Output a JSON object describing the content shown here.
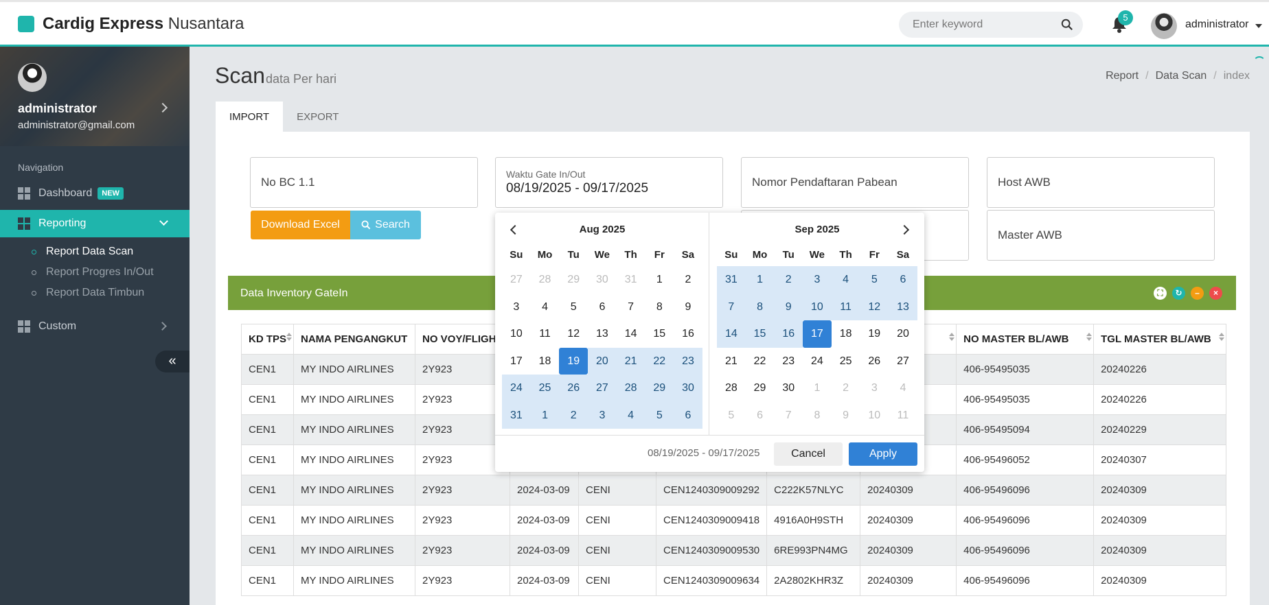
{
  "header": {
    "brand_bold": "Cardig Express",
    "brand_light": "Nusantara",
    "search_placeholder": "Enter keyword",
    "notification_count": "5",
    "user": "administrator"
  },
  "sidebar": {
    "profile_name": "administrator",
    "profile_email": "administrator@gmail.com",
    "nav_heading": "Navigation",
    "items": [
      {
        "label": "Dashboard",
        "badge": "NEW"
      },
      {
        "label": "Reporting"
      },
      {
        "label": "Custom"
      }
    ],
    "subitems": [
      "Report Data Scan",
      "Report Progres In/Out",
      "Report Data Timbun"
    ],
    "collapse_label": "«"
  },
  "page": {
    "title": "Scan",
    "subtitle": "data Per hari",
    "breadcrumb": [
      "Report",
      "Data Scan",
      "index"
    ],
    "tabs": [
      "IMPORT",
      "EXPORT"
    ]
  },
  "filters": {
    "no_bc": "No BC 1.1",
    "gate_label": "Waktu Gate In/Out",
    "gate_value": "08/19/2025 - 09/17/2025",
    "nomor_pendaftaran": "Nomor Pendaftaran Pabean",
    "host_awb": "Host AWB",
    "master_awb": "Master AWB",
    "download_excel": "Download Excel",
    "search": "Search"
  },
  "panel": {
    "title": "Data Inventory GateIn"
  },
  "table": {
    "headers": [
      "KD TPS",
      "NAMA PENGANGKUT",
      "NO VOY/FLIGHT",
      "",
      "",
      "",
      "",
      "",
      "NO MASTER BL/AWB",
      "TGL MASTER BL/AWB"
    ],
    "rows": [
      [
        "CEN1",
        "MY INDO AIRLINES",
        "2Y923",
        "",
        "",
        "",
        "",
        "",
        "406-95495035",
        "20240226"
      ],
      [
        "CEN1",
        "MY INDO AIRLINES",
        "2Y923",
        "",
        "",
        "",
        "",
        "",
        "406-95495035",
        "20240226"
      ],
      [
        "CEN1",
        "MY INDO AIRLINES",
        "2Y923",
        "",
        "",
        "",
        "",
        "",
        "406-95495094",
        "20240229"
      ],
      [
        "CEN1",
        "MY INDO AIRLINES",
        "2Y923",
        "",
        "",
        "",
        "",
        "",
        "406-95496052",
        "20240307"
      ],
      [
        "CEN1",
        "MY INDO AIRLINES",
        "2Y923",
        "2024-03-09",
        "CENI",
        "CEN1240309009292",
        "C222K57NLYC",
        "20240309",
        "406-95496096",
        "20240309"
      ],
      [
        "CEN1",
        "MY INDO AIRLINES",
        "2Y923",
        "2024-03-09",
        "CENI",
        "CEN1240309009418",
        "4916A0H9STH",
        "20240309",
        "406-95496096",
        "20240309"
      ],
      [
        "CEN1",
        "MY INDO AIRLINES",
        "2Y923",
        "2024-03-09",
        "CENI",
        "CEN1240309009530",
        "6RE993PN4MG",
        "20240309",
        "406-95496096",
        "20240309"
      ],
      [
        "CEN1",
        "MY INDO AIRLINES",
        "2Y923",
        "2024-03-09",
        "CENI",
        "CEN1240309009634",
        "2A2802KHR3Z",
        "20240309",
        "406-95496096",
        "20240309"
      ]
    ]
  },
  "datepicker": {
    "dow": [
      "Su",
      "Mo",
      "Tu",
      "We",
      "Th",
      "Fr",
      "Sa"
    ],
    "left": {
      "month": "Aug 2025",
      "days": [
        [
          "27",
          "off"
        ],
        [
          "28",
          "off"
        ],
        [
          "29",
          "off"
        ],
        [
          "30",
          "off"
        ],
        [
          "31",
          "off"
        ],
        [
          "1",
          ""
        ],
        [
          "2",
          ""
        ],
        [
          "3",
          ""
        ],
        [
          "4",
          ""
        ],
        [
          "5",
          ""
        ],
        [
          "6",
          ""
        ],
        [
          "7",
          ""
        ],
        [
          "8",
          ""
        ],
        [
          "9",
          ""
        ],
        [
          "10",
          ""
        ],
        [
          "11",
          ""
        ],
        [
          "12",
          ""
        ],
        [
          "13",
          ""
        ],
        [
          "14",
          ""
        ],
        [
          "15",
          ""
        ],
        [
          "16",
          ""
        ],
        [
          "17",
          ""
        ],
        [
          "18",
          ""
        ],
        [
          "19",
          "sel"
        ],
        [
          "20",
          "in"
        ],
        [
          "21",
          "in"
        ],
        [
          "22",
          "in"
        ],
        [
          "23",
          "in"
        ],
        [
          "24",
          "in"
        ],
        [
          "25",
          "in"
        ],
        [
          "26",
          "in"
        ],
        [
          "27",
          "in"
        ],
        [
          "28",
          "in"
        ],
        [
          "29",
          "in"
        ],
        [
          "30",
          "in"
        ],
        [
          "31",
          "in"
        ],
        [
          "1",
          "in"
        ],
        [
          "2",
          "in"
        ],
        [
          "3",
          "in"
        ],
        [
          "4",
          "in"
        ],
        [
          "5",
          "in"
        ],
        [
          "6",
          "in"
        ]
      ]
    },
    "right": {
      "month": "Sep 2025",
      "days": [
        [
          "31",
          "in"
        ],
        [
          "1",
          "in"
        ],
        [
          "2",
          "in"
        ],
        [
          "3",
          "in"
        ],
        [
          "4",
          "in"
        ],
        [
          "5",
          "in"
        ],
        [
          "6",
          "in"
        ],
        [
          "7",
          "in"
        ],
        [
          "8",
          "in"
        ],
        [
          "9",
          "in"
        ],
        [
          "10",
          "in"
        ],
        [
          "11",
          "in"
        ],
        [
          "12",
          "in"
        ],
        [
          "13",
          "in"
        ],
        [
          "14",
          "in"
        ],
        [
          "15",
          "in"
        ],
        [
          "16",
          "in"
        ],
        [
          "17",
          "sel"
        ],
        [
          "18",
          ""
        ],
        [
          "19",
          ""
        ],
        [
          "20",
          ""
        ],
        [
          "21",
          ""
        ],
        [
          "22",
          ""
        ],
        [
          "23",
          ""
        ],
        [
          "24",
          ""
        ],
        [
          "25",
          ""
        ],
        [
          "26",
          ""
        ],
        [
          "27",
          ""
        ],
        [
          "28",
          ""
        ],
        [
          "29",
          ""
        ],
        [
          "30",
          ""
        ],
        [
          "1",
          "off"
        ],
        [
          "2",
          "off"
        ],
        [
          "3",
          "off"
        ],
        [
          "4",
          "off"
        ],
        [
          "5",
          "off"
        ],
        [
          "6",
          "off"
        ],
        [
          "7",
          "off"
        ],
        [
          "8",
          "off"
        ],
        [
          "9",
          "off"
        ],
        [
          "10",
          "off"
        ],
        [
          "11",
          "off"
        ]
      ]
    },
    "range_text": "08/19/2025 - 09/17/2025",
    "cancel": "Cancel",
    "apply": "Apply"
  },
  "colors": {
    "accent": "#1fb5ac",
    "panel_head": "#77a03b",
    "excel": "#f39c12",
    "search": "#5bc0de",
    "picker_selected": "#3081d6"
  }
}
